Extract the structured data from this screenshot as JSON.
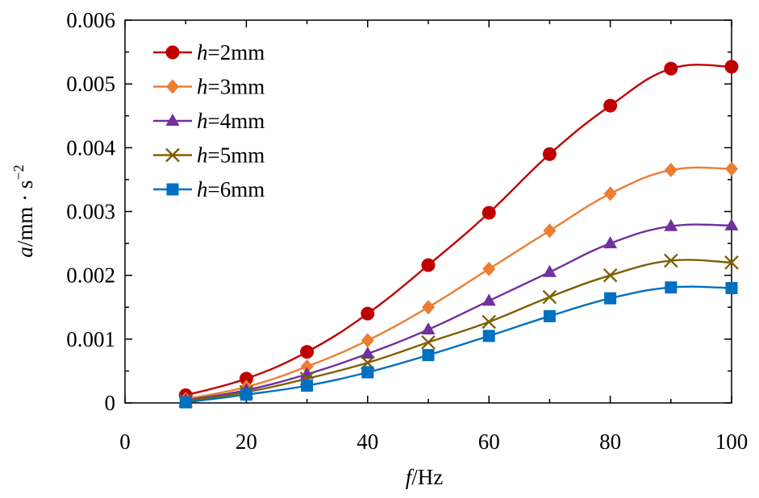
{
  "chart_data": {
    "type": "line",
    "title": "",
    "xlabel": {
      "var": "f",
      "unit": "/Hz"
    },
    "ylabel": {
      "var": "a",
      "unit": "/mm · s",
      "sup": "−2"
    },
    "xlim": [
      0,
      100
    ],
    "ylim": [
      0,
      0.006
    ],
    "xticks": [
      "0",
      "20",
      "40",
      "60",
      "80",
      "100"
    ],
    "xtick_values": [
      0,
      20,
      40,
      60,
      80,
      100
    ],
    "yticks": [
      "0",
      "0.001",
      "0.002",
      "0.003",
      "0.004",
      "0.005",
      "0.006"
    ],
    "ytick_values": [
      0,
      0.001,
      0.002,
      0.003,
      0.004,
      0.005,
      0.006
    ],
    "grid": false,
    "legend": "top-left",
    "x": [
      10,
      20,
      30,
      40,
      50,
      60,
      70,
      80,
      90,
      100
    ],
    "series": [
      {
        "name": "=2mm",
        "var": "h",
        "marker": "circle",
        "color": "#C00000",
        "values": [
          0.00012,
          0.00038,
          0.0008,
          0.0014,
          0.00216,
          0.00298,
          0.0039,
          0.00466,
          0.00524,
          0.00527
        ]
      },
      {
        "name": "=3mm",
        "var": "h",
        "marker": "diamond",
        "color": "#ED7D31",
        "values": [
          6e-05,
          0.00025,
          0.00057,
          0.00098,
          0.0015,
          0.0021,
          0.0027,
          0.00328,
          0.00365,
          0.00367
        ]
      },
      {
        "name": "=4mm",
        "var": "h",
        "marker": "triangle",
        "color": "#7030A0",
        "values": [
          4e-05,
          0.0002,
          0.00045,
          0.00077,
          0.00115,
          0.0016,
          0.00205,
          0.0025,
          0.00277,
          0.00278
        ]
      },
      {
        "name": "=5mm",
        "var": "h",
        "marker": "x",
        "color": "#7F6000",
        "values": [
          3e-05,
          0.00017,
          0.00038,
          0.00063,
          0.00095,
          0.00127,
          0.00166,
          0.002,
          0.00223,
          0.0022
        ]
      },
      {
        "name": "=6mm",
        "var": "h",
        "marker": "square",
        "color": "#0070C0",
        "values": [
          1e-05,
          0.00013,
          0.00027,
          0.00048,
          0.00075,
          0.00105,
          0.00136,
          0.00164,
          0.00181,
          0.0018
        ]
      }
    ]
  }
}
